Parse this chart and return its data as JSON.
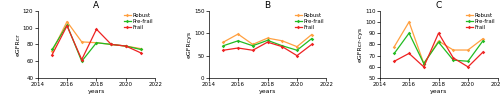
{
  "years": [
    2015,
    2016,
    2017,
    2018,
    2019,
    2020,
    2021
  ],
  "panel_A": {
    "title": "A",
    "ylabel": "eGFRcr",
    "ylim": [
      40,
      120
    ],
    "yticks": [
      40,
      60,
      80,
      100,
      120
    ],
    "robust": [
      72,
      107,
      83,
      82,
      80,
      78,
      75
    ],
    "prefrail": [
      74,
      103,
      60,
      82,
      80,
      78,
      74
    ],
    "frail": [
      68,
      102,
      62,
      98,
      80,
      78,
      70
    ]
  },
  "panel_B": {
    "title": "B",
    "ylabel": "eGFRcys",
    "ylim": [
      0,
      150
    ],
    "yticks": [
      0,
      50,
      100,
      150
    ],
    "robust": [
      80,
      98,
      75,
      89,
      83,
      70,
      97
    ],
    "prefrail": [
      72,
      83,
      72,
      84,
      72,
      62,
      88
    ],
    "frail": [
      62,
      67,
      62,
      80,
      70,
      50,
      75
    ]
  },
  "panel_C": {
    "title": "C",
    "ylabel": "eGFRcr-cys",
    "ylim": [
      50,
      110
    ],
    "yticks": [
      50,
      60,
      70,
      80,
      90,
      100,
      110
    ],
    "robust": [
      78,
      100,
      63,
      83,
      75,
      75,
      85
    ],
    "prefrail": [
      72,
      90,
      63,
      82,
      66,
      65,
      83
    ],
    "frail": [
      65,
      72,
      60,
      90,
      68,
      60,
      73
    ]
  },
  "colors": {
    "robust": "#FFA040",
    "prefrail": "#22BB22",
    "frail": "#EE2222"
  },
  "xlabel": "years",
  "marker": "D",
  "markersize": 1.8,
  "linewidth": 0.9,
  "xlim": [
    2014,
    2022
  ],
  "xticks": [
    2014,
    2016,
    2018,
    2020,
    2022
  ]
}
